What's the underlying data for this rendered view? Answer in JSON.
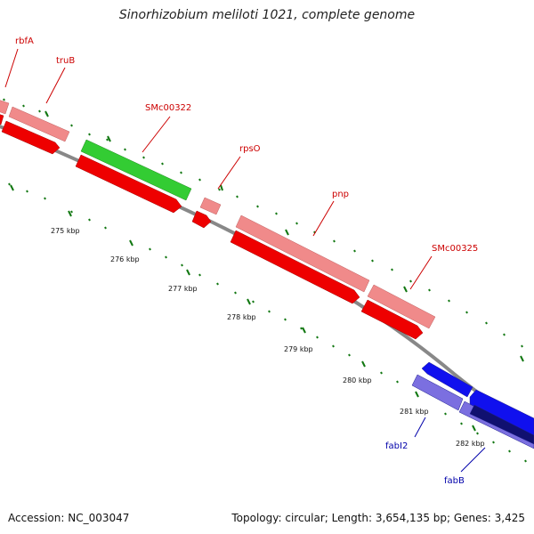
{
  "title": "Sinorhizobium meliloti 1021, complete genome",
  "footer": {
    "accession": "Accession: NC_003047",
    "summary": "Topology: circular; Length: 3,654,135 bp; Genes: 3,425"
  },
  "colors": {
    "forward_gene_light": "#f08a8a",
    "forward_gene_dark": "#ee0000",
    "reverse_gene_light": "#7b6fe0",
    "reverse_gene_dark": "#1010ee",
    "reverse_gene_navy": "#101070",
    "rna_gene": "#33cc33",
    "backbone": "#888888",
    "tick": "#117711",
    "label_forward": "#cc0000",
    "label_reverse": "#0000aa"
  },
  "scale_labels": [
    "275 kbp",
    "276 kbp",
    "277 kbp",
    "278 kbp",
    "279 kbp",
    "280 kbp",
    "281 kbp",
    "282 kbp"
  ],
  "gene_labels": [
    {
      "text": "rbfA",
      "strand": "forward"
    },
    {
      "text": "truB",
      "strand": "forward"
    },
    {
      "text": "SMc00322",
      "strand": "forward"
    },
    {
      "text": "rpsO",
      "strand": "forward"
    },
    {
      "text": "pnp",
      "strand": "forward"
    },
    {
      "text": "SMc00325",
      "strand": "forward"
    },
    {
      "text": "fabI2",
      "strand": "reverse"
    },
    {
      "text": "fabB",
      "strand": "reverse"
    }
  ]
}
